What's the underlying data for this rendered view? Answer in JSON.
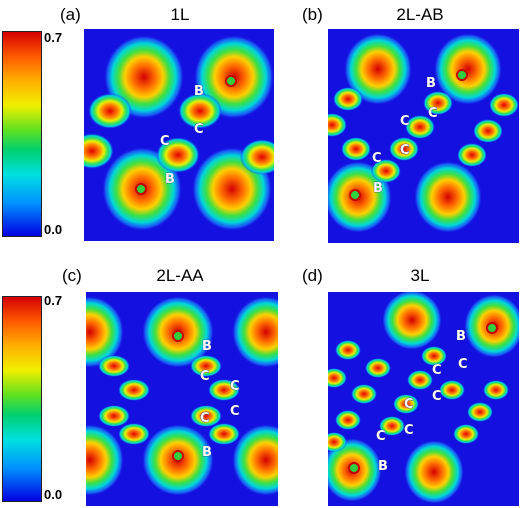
{
  "colorbar": {
    "max_label": "0.7",
    "min_label": "0.0"
  },
  "colors": {
    "background_low": "#1410e0",
    "high": "#d40000"
  },
  "panels": [
    {
      "tag": "(a)",
      "title": "1L",
      "atom_labels": [
        "B",
        "C",
        "C",
        "B"
      ]
    },
    {
      "tag": "(b)",
      "title": "2L-AB",
      "atom_labels": [
        "B",
        "C",
        "C",
        "C",
        "C",
        "B"
      ]
    },
    {
      "tag": "(c)",
      "title": "2L-AA",
      "atom_labels": [
        "B",
        "C",
        "C",
        "C",
        "C",
        "B"
      ]
    },
    {
      "tag": "(d)",
      "title": "3L",
      "atom_labels": [
        "B",
        "C",
        "C",
        "C",
        "C",
        "C",
        "C",
        "B"
      ]
    }
  ]
}
